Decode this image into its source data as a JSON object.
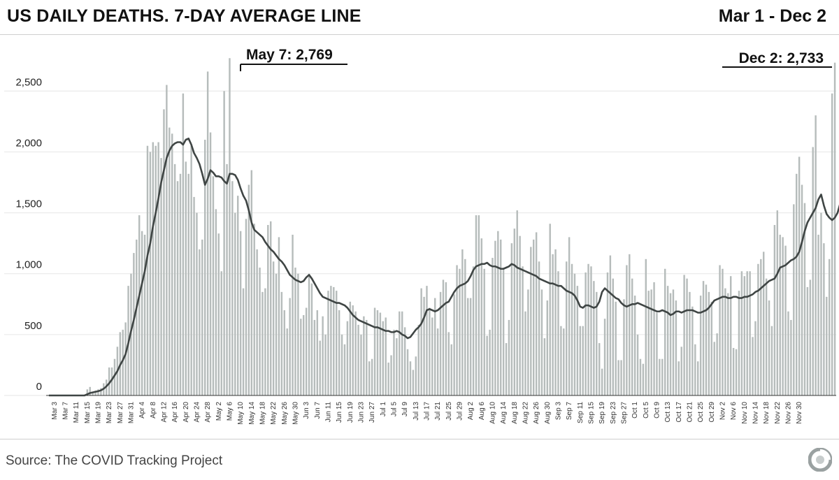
{
  "header": {
    "title": "US DAILY DEATHS. 7-DAY AVERAGE LINE",
    "date_range": "Mar 1 - Dec 2"
  },
  "footer": {
    "source": "Source: The COVID Tracking Project"
  },
  "chart_data": {
    "type": "bar",
    "title": "US DAILY DEATHS. 7-DAY AVERAGE LINE",
    "subtitle": "Mar 1 - Dec 2",
    "xlabel": "",
    "ylabel": "",
    "x_start": "Mar 1",
    "ylim": [
      0,
      2800
    ],
    "yticks": [
      0,
      500,
      1000,
      1500,
      2000,
      2500
    ],
    "ytick_labels": [
      "0",
      "500",
      "1,000",
      "1,500",
      "2,000",
      "2,500"
    ],
    "xtick_labels": [
      "Mar 3",
      "Mar 7",
      "Mar 11",
      "Mar 15",
      "Mar 19",
      "Mar 23",
      "Mar 27",
      "Mar 31",
      "Apr 4",
      "Apr 8",
      "Apr 12",
      "Apr 16",
      "Apr 20",
      "Apr 24",
      "Apr 28",
      "May 2",
      "May 6",
      "May 10",
      "May 14",
      "May 18",
      "May 22",
      "May 26",
      "May 30",
      "Jun 3",
      "Jun 7",
      "Jun 11",
      "Jun 15",
      "Jun 19",
      "Jun 23",
      "Jun 27",
      "Jul 1",
      "Jul 5",
      "Jul 9",
      "Jul 13",
      "Jul 17",
      "Jul 21",
      "Jul 25",
      "Jul 29",
      "Aug 2",
      "Aug 6",
      "Aug 10",
      "Aug 14",
      "Aug 18",
      "Aug 22",
      "Aug 26",
      "Aug 30",
      "Sep 3",
      "Sep 7",
      "Sep 11",
      "Sep 15",
      "Sep 19",
      "Sep 23",
      "Sep 27",
      "Oct 1",
      "Oct 5",
      "Oct 9",
      "Oct 13",
      "Oct 17",
      "Oct 21",
      "Oct 25",
      "Oct 29",
      "Nov 2",
      "Nov 6",
      "Nov 10",
      "Nov 14",
      "Nov 18",
      "Nov 22",
      "Nov 26",
      "Nov 30"
    ],
    "grid": true,
    "colors": {
      "bars": "#b6bcbb",
      "line": "#3f4544",
      "grid": "#e6e6e6"
    },
    "annotations": [
      {
        "text": "May 7: 2,769",
        "x": "May 7",
        "y": 2769
      },
      {
        "text": "Dec 2: 2,733",
        "x": "Dec 2",
        "y": 2733
      }
    ],
    "series": [
      {
        "kind": "bar",
        "values": [
          0,
          0,
          0,
          0,
          0,
          0,
          0,
          0,
          0,
          0,
          0,
          0,
          0,
          0,
          50,
          70,
          20,
          40,
          50,
          60,
          100,
          130,
          230,
          230,
          300,
          400,
          520,
          540,
          600,
          900,
          1000,
          1170,
          1280,
          1480,
          1350,
          1320,
          2050,
          2000,
          2080,
          2050,
          2080,
          1950,
          2350,
          2550,
          2200,
          2150,
          1900,
          1760,
          1820,
          2480,
          1920,
          1820,
          2050,
          1630,
          1500,
          1200,
          1280,
          2100,
          2660,
          2160,
          1800,
          1530,
          1330,
          1020,
          2500,
          1900,
          2770,
          1760,
          1500,
          1640,
          1350,
          880,
          1450,
          1730,
          1850,
          1410,
          1200,
          1050,
          850,
          880,
          1400,
          1430,
          1100,
          1000,
          1300,
          850,
          700,
          550,
          800,
          1320,
          1050,
          1000,
          630,
          660,
          720,
          1000,
          920,
          620,
          700,
          450,
          650,
          500,
          860,
          900,
          890,
          860,
          700,
          500,
          420,
          610,
          770,
          740,
          690,
          580,
          500,
          650,
          620,
          280,
          300,
          720,
          700,
          680,
          610,
          640,
          270,
          330,
          540,
          470,
          690,
          690,
          560,
          380,
          280,
          210,
          320,
          580,
          880,
          810,
          900,
          720,
          640,
          800,
          550,
          850,
          950,
          930,
          520,
          420,
          830,
          1070,
          1040,
          1200,
          1120,
          800,
          800,
          1060,
          1480,
          1480,
          1290,
          1040,
          490,
          540,
          1130,
          1270,
          1350,
          1280,
          1050,
          430,
          620,
          1250,
          1370,
          1520,
          1310,
          1060,
          690,
          870,
          1220,
          1280,
          1340,
          1100,
          870,
          470,
          780,
          1410,
          1160,
          1200,
          1020,
          570,
          550,
          1100,
          1300,
          1080,
          1000,
          900,
          570,
          570,
          1010,
          1080,
          1060,
          940,
          850,
          430,
          220,
          630,
          1010,
          1150,
          960,
          770,
          290,
          290,
          790,
          1070,
          1160,
          960,
          820,
          500,
          300,
          260,
          1120,
          860,
          870,
          930,
          680,
          300,
          300,
          1040,
          900,
          840,
          870,
          780,
          280,
          400,
          990,
          960,
          850,
          730,
          420,
          280,
          820,
          940,
          910,
          850,
          770,
          440,
          510,
          1070,
          1040,
          880,
          840,
          980,
          390,
          380,
          860,
          1020,
          980,
          1020,
          1020,
          480,
          610,
          1080,
          1120,
          1180,
          960,
          780,
          570,
          1400,
          1520,
          1320,
          1300,
          1230,
          690,
          620,
          1570,
          1820,
          1960,
          1730,
          1580,
          890,
          950,
          2040,
          2300,
          1320,
          1500,
          1250,
          810,
          1120,
          2480,
          2733
        ],
        "note": "Daily deaths, one bar per day from Mar 1 to Dec 2"
      },
      {
        "kind": "line",
        "values": [
          0,
          0,
          0,
          0,
          0,
          0,
          0,
          0,
          0,
          0,
          0,
          0,
          0,
          0,
          10,
          20,
          25,
          30,
          35,
          42,
          55,
          75,
          100,
          130,
          165,
          200,
          250,
          290,
          340,
          430,
          530,
          620,
          720,
          820,
          920,
          1020,
          1150,
          1250,
          1390,
          1500,
          1620,
          1750,
          1850,
          1950,
          2010,
          2050,
          2070,
          2080,
          2080,
          2060,
          2100,
          2110,
          2060,
          1990,
          1950,
          1900,
          1820,
          1730,
          1780,
          1850,
          1830,
          1800,
          1800,
          1790,
          1760,
          1740,
          1820,
          1820,
          1810,
          1770,
          1700,
          1640,
          1600,
          1520,
          1420,
          1360,
          1340,
          1320,
          1300,
          1260,
          1230,
          1200,
          1180,
          1150,
          1120,
          1100,
          1070,
          1030,
          990,
          970,
          950,
          940,
          930,
          940,
          970,
          990,
          960,
          920,
          880,
          840,
          810,
          800,
          790,
          780,
          770,
          760,
          760,
          750,
          740,
          720,
          690,
          660,
          640,
          620,
          610,
          600,
          590,
          580,
          570,
          560,
          560,
          550,
          540,
          530,
          530,
          520,
          520,
          530,
          520,
          500,
          490,
          470,
          480,
          510,
          540,
          560,
          590,
          640,
          700,
          710,
          700,
          690,
          700,
          720,
          740,
          760,
          770,
          810,
          850,
          880,
          900,
          910,
          920,
          940,
          980,
          1030,
          1060,
          1070,
          1080,
          1080,
          1090,
          1070,
          1060,
          1060,
          1050,
          1040,
          1040,
          1050,
          1060,
          1080,
          1070,
          1050,
          1040,
          1030,
          1020,
          1010,
          1000,
          990,
          980,
          960,
          950,
          940,
          930,
          920,
          920,
          910,
          900,
          900,
          880,
          860,
          850,
          840,
          820,
          780,
          730,
          720,
          740,
          740,
          730,
          720,
          730,
          770,
          850,
          880,
          860,
          840,
          820,
          800,
          790,
          760,
          740,
          730,
          740,
          750,
          750,
          760,
          750,
          740,
          730,
          720,
          710,
          700,
          690,
          690,
          700,
          690,
          680,
          660,
          670,
          690,
          690,
          680,
          690,
          700,
          700,
          700,
          690,
          680,
          680,
          690,
          700,
          720,
          750,
          780,
          790,
          800,
          810,
          810,
          800,
          800,
          810,
          810,
          800,
          800,
          810,
          810,
          820,
          830,
          850,
          860,
          880,
          900,
          920,
          940,
          950,
          960,
          1000,
          1050,
          1060,
          1070,
          1090,
          1110,
          1120,
          1140,
          1180,
          1260,
          1350,
          1420,
          1460,
          1500,
          1540,
          1610,
          1650,
          1560,
          1490,
          1460,
          1440,
          1460,
          1500,
          1580
        ]
      }
    ]
  }
}
